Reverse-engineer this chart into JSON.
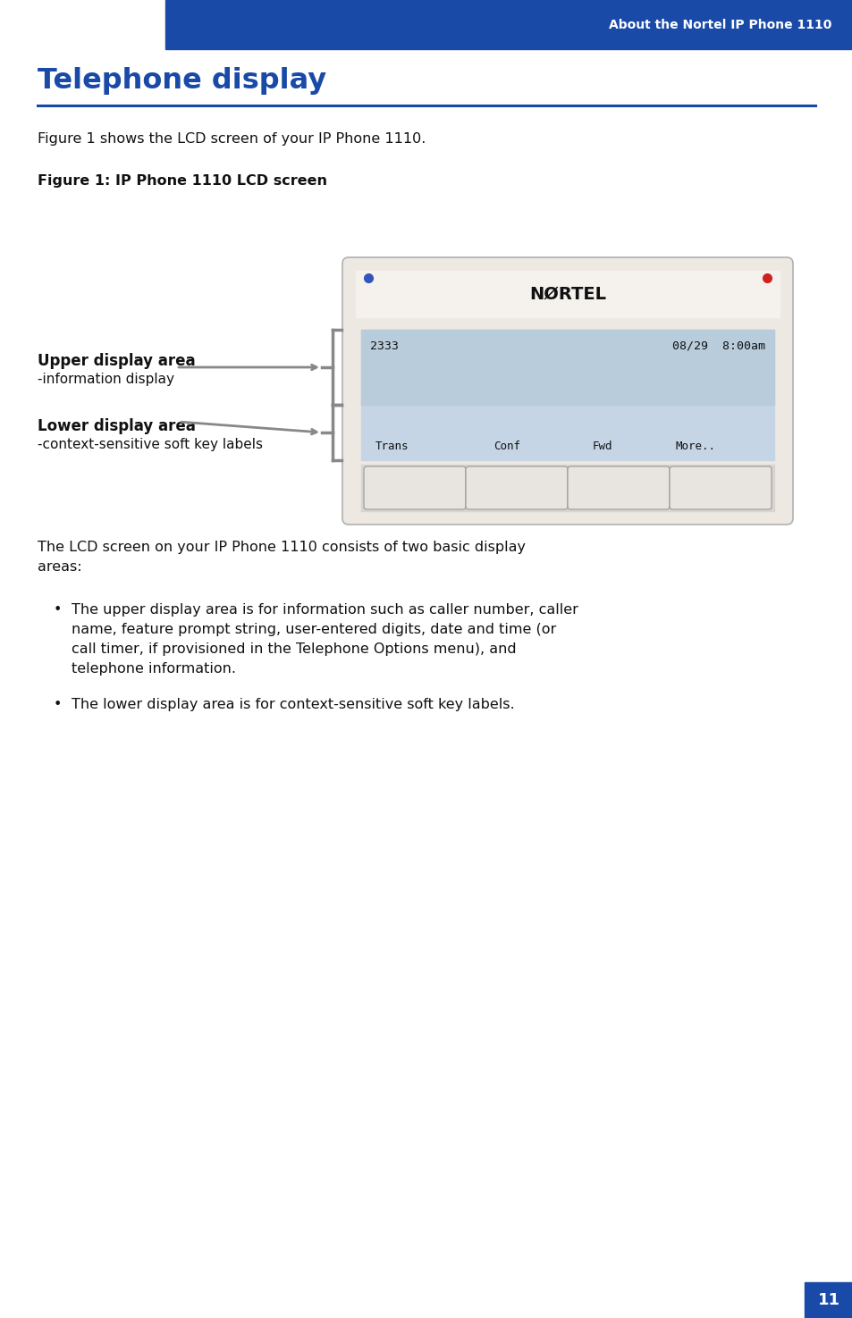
{
  "page_bg": "#ffffff",
  "header_bg": "#1a4aa8",
  "header_text": "About the Nortel IP Phone 1110",
  "header_text_color": "#ffffff",
  "title": "Telephone display",
  "title_color": "#1a4aa8",
  "title_fontsize": 22,
  "divider_color": "#1a4aa8",
  "body_text1": "Figure 1 shows the LCD screen of your IP Phone 1110.",
  "figure_label": "Figure 1: IP Phone 1110 LCD screen",
  "upper_label_title": "Upper display area",
  "upper_label_sub": "-information display",
  "lower_label_title": "Lower display area",
  "lower_label_sub": "-context-sensitive soft key labels",
  "nortel_text": "NØRTEL",
  "body_text2": "The LCD screen on your IP Phone 1110 consists of two basic display\nareas:",
  "bullet1_lines": [
    "The upper display area is for information such as caller number, caller",
    "name, feature prompt string, user-entered digits, date and time (or",
    "call timer, if provisioned in the Telephone Options menu), and",
    "telephone information."
  ],
  "bullet2": "The lower display area is for context-sensitive soft key labels.",
  "page_number": "11",
  "page_num_bg": "#1a4aa8",
  "page_num_color": "#ffffff"
}
